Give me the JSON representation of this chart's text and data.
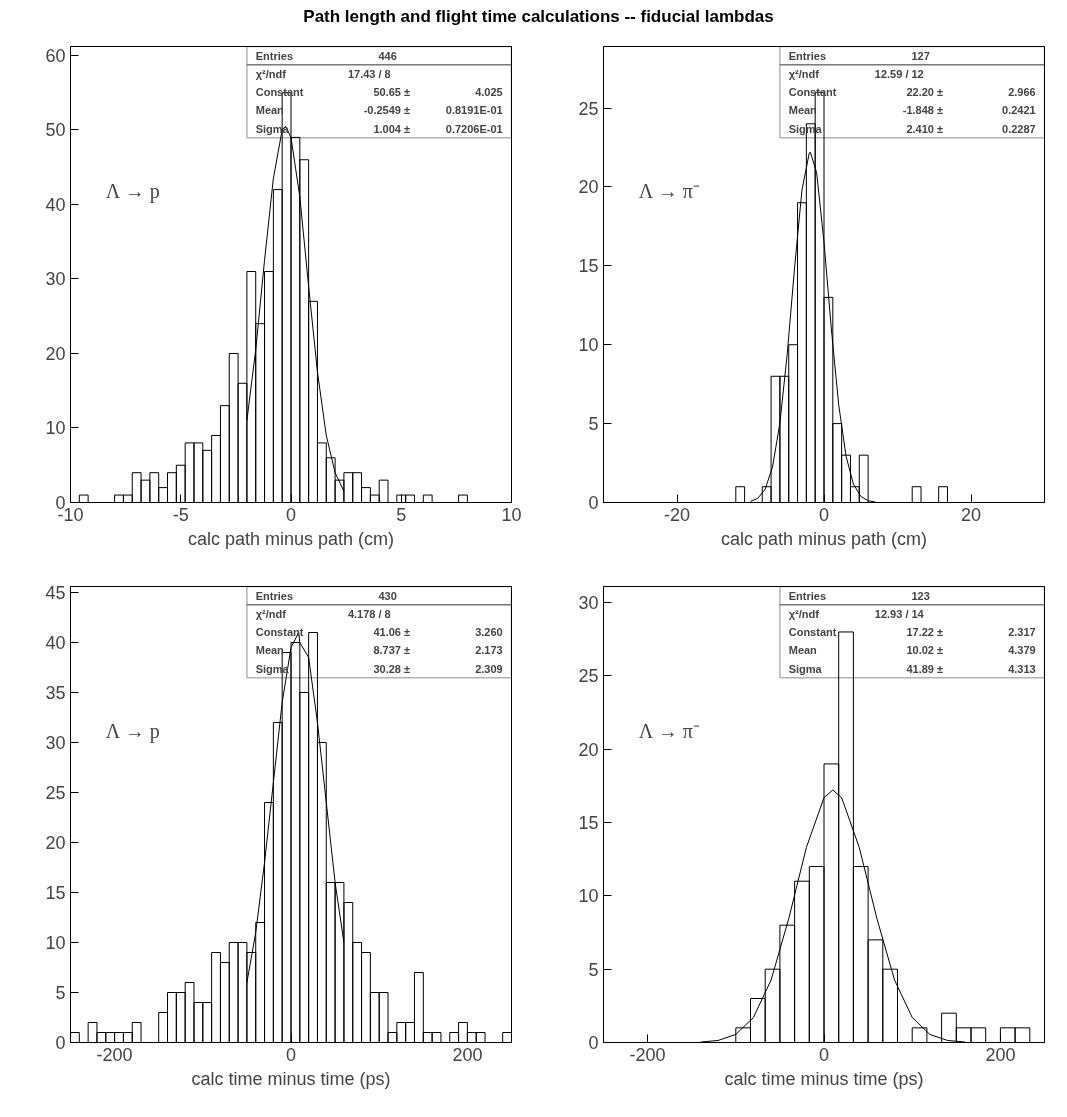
{
  "chart_data": [
    {
      "type": "histogram",
      "title": "Path length and flight time calculations -- fiducial lambdas",
      "xlabel": "calc path minus path (cm)",
      "color": "#000000",
      "grid": false,
      "bins": [
        -10,
        -9.6,
        -9.2,
        -8.8,
        -8.4,
        -8,
        -7.6,
        -7.2,
        -6.8,
        -6.4,
        -6,
        -5.6,
        -5.2,
        -4.8,
        -4.4,
        -4,
        -3.6,
        -3.2,
        -2.8,
        -2.4,
        -2,
        -1.6,
        -1.2,
        -0.8,
        -0.4,
        0,
        0.4,
        0.8,
        1.2,
        1.6,
        2,
        2.4,
        2.8,
        3.2,
        3.6,
        4,
        4.4,
        4.8,
        5.2,
        5.6,
        6,
        6.4,
        6.8,
        7.2,
        7.6,
        8,
        8.4,
        8.8,
        9.2,
        9.6,
        10
      ],
      "values": [
        0,
        1,
        0,
        0,
        0,
        1,
        1,
        4,
        3,
        4,
        2,
        4,
        5,
        8,
        8,
        7,
        9,
        13,
        20,
        16,
        31,
        24,
        31,
        42,
        55,
        49,
        46,
        27,
        8,
        6,
        3,
        4,
        4,
        2,
        1,
        3,
        0,
        1,
        1,
        0,
        1,
        0,
        0,
        0,
        1,
        0,
        0,
        0,
        0,
        0
      ],
      "series": [
        {
          "type": "line",
          "color": "#000000",
          "x": [
            -2,
            -1.6,
            -1.2,
            -0.8,
            -0.4,
            -0.25,
            0,
            0.4,
            0.8,
            1.2,
            1.6,
            2,
            2.4
          ],
          "values": [
            11,
            20.5,
            32.5,
            43.5,
            50,
            50.5,
            49,
            41,
            29,
            17.5,
            9,
            4,
            1.5
          ]
        }
      ],
      "xlim": [
        -10,
        10
      ],
      "xticks": [
        -10,
        -5,
        0,
        5,
        10
      ],
      "ylim": [
        0,
        61.2
      ],
      "yticks": [
        0,
        10,
        20,
        30,
        40,
        50,
        60
      ],
      "annotations": [
        "Λ → p",
        "Entries\t446",
        "χ²/ndf\t17.43  /  8",
        "Constant\t50.65 ±\t4.025",
        "Mean\t-0.2549 ±\t0.8191E-01",
        "Sigma\t1.004 ±\t0.7206E-01"
      ]
    },
    {
      "type": "histogram",
      "xlabel": "calc path minus path (cm)",
      "color": "#000000",
      "grid": false,
      "bins": [
        -30,
        -28.8,
        -27.6,
        -26.4,
        -25.2,
        -24,
        -22.8,
        -21.6,
        -20.4,
        -19.2,
        -18,
        -16.8,
        -15.6,
        -14.4,
        -13.2,
        -12,
        -10.8,
        -9.6,
        -8.4,
        -7.2,
        -6,
        -4.8,
        -3.6,
        -2.4,
        -1.2,
        0,
        1.2,
        2.4,
        3.6,
        4.8,
        6,
        7.2,
        8.4,
        9.6,
        10.8,
        12,
        13.2,
        14.4,
        15.6,
        16.8,
        18,
        19.2,
        20.4,
        21.6,
        22.8,
        24,
        25.2,
        26.4,
        27.6,
        28.8,
        30
      ],
      "values": [
        0,
        0,
        0,
        0,
        0,
        0,
        0,
        0,
        0,
        0,
        0,
        0,
        0,
        0,
        0,
        1,
        0,
        0,
        1,
        8,
        8,
        10,
        19,
        24,
        26,
        13,
        5,
        3,
        1,
        3,
        0,
        0,
        0,
        0,
        0,
        1,
        0,
        0,
        1,
        0,
        0,
        0,
        0,
        0,
        0,
        0,
        0,
        0,
        0,
        0
      ],
      "series": [
        {
          "type": "line",
          "color": "#000000",
          "x": [
            -10,
            -9,
            -8,
            -7,
            -6,
            -5,
            -4,
            -3,
            -2,
            -1.848,
            -1,
            0,
            1,
            2,
            3,
            4,
            5,
            6,
            7
          ],
          "values": [
            0.07,
            0.27,
            0.85,
            2.26,
            5.03,
            9.44,
            14.9,
            19.8,
            22.16,
            22.2,
            20.9,
            16.5,
            11,
            6.2,
            2.93,
            1.17,
            0.39,
            0.11,
            0.03
          ]
        }
      ],
      "xlim": [
        -30,
        30
      ],
      "xticks": [
        -20,
        0,
        20
      ],
      "ylim": [
        0,
        28.9
      ],
      "yticks": [
        0,
        5,
        10,
        15,
        20,
        25
      ],
      "annotations": [
        "Λ → π⁻",
        "Entries\t127",
        "χ²/ndf\t12.59  /  12",
        "Constant\t22.20 ±\t2.966",
        "Mean\t-1.848 ±\t0.2421",
        "Sigma\t2.410 ±\t0.2287"
      ]
    },
    {
      "type": "histogram",
      "xlabel": "calc time minus time (ps)",
      "color": "#000000",
      "grid": false,
      "bins": [
        -250,
        -240,
        -230,
        -220,
        -210,
        -200,
        -190,
        -180,
        -170,
        -160,
        -150,
        -140,
        -130,
        -120,
        -110,
        -100,
        -90,
        -80,
        -70,
        -60,
        -50,
        -40,
        -30,
        -20,
        -10,
        0,
        10,
        20,
        30,
        40,
        50,
        60,
        70,
        80,
        90,
        100,
        110,
        120,
        130,
        140,
        150,
        160,
        170,
        180,
        190,
        200,
        210,
        220,
        230,
        240,
        250
      ],
      "values": [
        1,
        0,
        2,
        1,
        1,
        1,
        1,
        2,
        0,
        0,
        3,
        5,
        5,
        6,
        4,
        4,
        9,
        8,
        10,
        10,
        9,
        12,
        24,
        32,
        39,
        40,
        35,
        41,
        30,
        16,
        16,
        14,
        10,
        9,
        5,
        5,
        1,
        2,
        2,
        7,
        1,
        1,
        0,
        1,
        2,
        1,
        1,
        0,
        0,
        1
      ],
      "series": [
        {
          "type": "line",
          "color": "#000000",
          "x": [
            -50,
            -40,
            -30,
            -20,
            -10,
            0,
            8.737,
            10,
            20,
            30,
            40,
            50,
            60
          ],
          "values": [
            6,
            11,
            18,
            26,
            34,
            39.5,
            41,
            40,
            38.5,
            32,
            24,
            16,
            10
          ]
        }
      ],
      "xlim": [
        -250,
        250
      ],
      "xticks": [
        -200,
        0,
        200
      ],
      "ylim": [
        0,
        45.6
      ],
      "yticks": [
        0,
        5,
        10,
        15,
        20,
        25,
        30,
        35,
        40,
        45
      ],
      "annotations": [
        "Λ → p",
        "Entries\t430",
        "χ²/ndf\t4.178  /  8",
        "Constant\t41.06 ±\t3.260",
        "Mean\t8.737 ±\t2.173",
        "Sigma\t30.28 ±\t2.309"
      ]
    },
    {
      "type": "histogram",
      "xlabel": "calc time minus time (ps)",
      "color": "#000000",
      "grid": false,
      "bins": [
        -250,
        -233.33,
        -216.67,
        -200,
        -183.33,
        -166.67,
        -150,
        -133.33,
        -116.67,
        -100,
        -83.33,
        -66.67,
        -50,
        -33.33,
        -16.67,
        0,
        16.67,
        33.33,
        50,
        66.67,
        83.33,
        100,
        116.67,
        133.33,
        150,
        166.67,
        183.33,
        200,
        216.67,
        233.33,
        250
      ],
      "values": [
        0,
        0,
        0,
        0,
        0,
        0,
        0,
        0,
        0,
        1,
        3,
        5,
        8,
        11,
        12,
        19,
        28,
        12,
        7,
        5,
        0,
        1,
        0,
        2,
        1,
        1,
        0,
        1,
        1,
        0
      ],
      "series": [
        {
          "type": "line",
          "color": "#000000",
          "x": [
            -140,
            -120,
            -100,
            -80,
            -60,
            -40,
            -20,
            0,
            10,
            20,
            40,
            60,
            80,
            100,
            120,
            140,
            160
          ],
          "values": [
            0.03,
            0.14,
            0.55,
            1.71,
            4.26,
            8.44,
            13.3,
            16.7,
            17.22,
            16.7,
            13.3,
            8.45,
            4.26,
            1.71,
            0.55,
            0.14,
            0.03
          ]
        }
      ],
      "xlim": [
        -250,
        250
      ],
      "xticks": [
        -200,
        0,
        200
      ],
      "ylim": [
        0,
        31.1
      ],
      "yticks": [
        0,
        5,
        10,
        15,
        20,
        25,
        30
      ],
      "annotations": [
        "Λ → π⁻",
        "Entries\t123",
        "χ²/ndf\t12.93  /  14",
        "Constant\t17.22 ±\t2.317",
        "Mean\t10.02 ±\t4.379",
        "Sigma\t41.89 ±\t4.313"
      ]
    }
  ]
}
